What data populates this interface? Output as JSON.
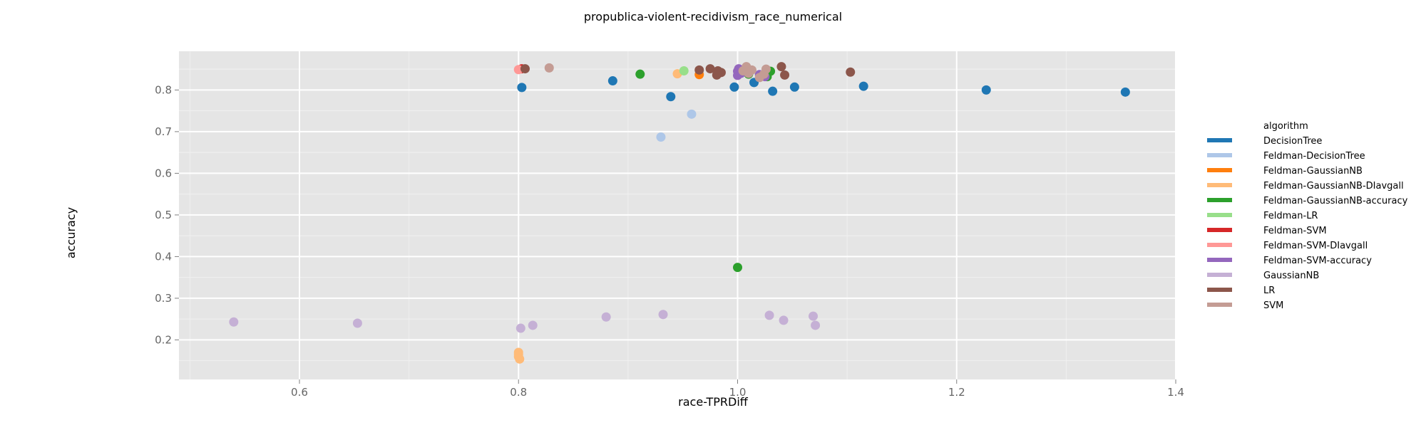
{
  "chart_data": {
    "type": "scatter",
    "title": "propublica-violent-recidivism_race_numerical",
    "xlabel": "race-TPRDiff",
    "ylabel": "accuracy",
    "xlim": [
      0.49,
      1.4
    ],
    "ylim": [
      0.105,
      0.893
    ],
    "x_ticks": [
      0.6,
      0.8,
      1.0,
      1.2,
      1.4
    ],
    "x_tick_labels": [
      "0.6",
      "0.8",
      "1.0",
      "1.2",
      "1.4"
    ],
    "y_ticks": [
      0.2,
      0.3,
      0.4,
      0.5,
      0.6,
      0.7,
      0.8
    ],
    "y_tick_labels": [
      "0.2",
      "0.3",
      "0.4",
      "0.5",
      "0.6",
      "0.7",
      "0.8"
    ],
    "grid": true,
    "legend_position": "right",
    "legend_title": "algorithm",
    "series": [
      {
        "name": "DecisionTree",
        "color": "#1f77b4",
        "points": [
          [
            0.803,
            0.806
          ],
          [
            0.886,
            0.822
          ],
          [
            0.939,
            0.784
          ],
          [
            0.997,
            0.807
          ],
          [
            1.015,
            0.818
          ],
          [
            1.032,
            0.797
          ],
          [
            1.052,
            0.807
          ],
          [
            1.115,
            0.809
          ],
          [
            1.227,
            0.8
          ],
          [
            1.354,
            0.795
          ]
        ]
      },
      {
        "name": "Feldman-DecisionTree",
        "color": "#aec7e8",
        "points": [
          [
            0.93,
            0.687
          ],
          [
            0.958,
            0.742
          ]
        ]
      },
      {
        "name": "Feldman-GaussianNB",
        "color": "#ff7f0e",
        "points": [
          [
            0.965,
            0.837
          ]
        ]
      },
      {
        "name": "Feldman-GaussianNB-DIavgall",
        "color": "#ffbb78",
        "points": [
          [
            0.945,
            0.839
          ],
          [
            0.8,
            0.17
          ],
          [
            0.8,
            0.16
          ],
          [
            0.801,
            0.154
          ],
          [
            0.8,
            0.165
          ]
        ]
      },
      {
        "name": "Feldman-GaussianNB-accuracy",
        "color": "#2ca02c",
        "points": [
          [
            0.911,
            0.838
          ],
          [
            1.01,
            0.838
          ],
          [
            1.027,
            0.832
          ],
          [
            1.03,
            0.845
          ],
          [
            1.0,
            0.374
          ]
        ]
      },
      {
        "name": "Feldman-LR",
        "color": "#98df8a",
        "points": [
          [
            0.951,
            0.846
          ]
        ]
      },
      {
        "name": "Feldman-SVM",
        "color": "#d62728",
        "points": [
          [
            0.803,
            0.851
          ]
        ]
      },
      {
        "name": "Feldman-SVM-DIavgall",
        "color": "#ff9896",
        "points": [
          [
            0.8,
            0.849
          ]
        ]
      },
      {
        "name": "Feldman-SVM-accuracy",
        "color": "#9467bd",
        "points": [
          [
            1.0,
            0.835
          ],
          [
            1.0,
            0.845
          ],
          [
            1.001,
            0.851
          ],
          [
            1.003,
            0.84
          ],
          [
            1.02,
            0.837
          ],
          [
            1.025,
            0.832
          ]
        ]
      },
      {
        "name": "GaussianNB",
        "color": "#c5b0d5",
        "points": [
          [
            0.54,
            0.243
          ],
          [
            0.653,
            0.24
          ],
          [
            0.802,
            0.228
          ],
          [
            0.813,
            0.235
          ],
          [
            0.88,
            0.255
          ],
          [
            0.932,
            0.261
          ],
          [
            1.029,
            0.259
          ],
          [
            1.042,
            0.247
          ],
          [
            1.069,
            0.257
          ],
          [
            1.071,
            0.235
          ]
        ]
      },
      {
        "name": "LR",
        "color": "#8c564b",
        "points": [
          [
            0.806,
            0.851
          ],
          [
            0.965,
            0.848
          ],
          [
            0.975,
            0.851
          ],
          [
            0.982,
            0.846
          ],
          [
            0.985,
            0.842
          ],
          [
            0.981,
            0.836
          ],
          [
            1.04,
            0.856
          ],
          [
            1.043,
            0.836
          ],
          [
            1.103,
            0.843
          ]
        ]
      },
      {
        "name": "SVM",
        "color": "#c49c94",
        "points": [
          [
            0.828,
            0.853
          ],
          [
            1.005,
            0.846
          ],
          [
            1.008,
            0.856
          ],
          [
            1.01,
            0.84
          ],
          [
            1.013,
            0.848
          ],
          [
            1.026,
            0.85
          ],
          [
            1.024,
            0.838
          ],
          [
            1.02,
            0.83
          ]
        ]
      }
    ]
  }
}
